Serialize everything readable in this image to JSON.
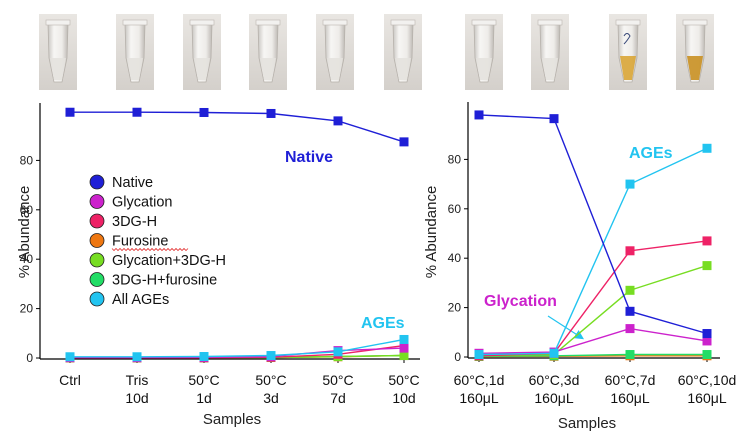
{
  "colors": {
    "Native": "#1f1fd6",
    "Glycation": "#cc22cc",
    "3DG-H": "#ee2266",
    "Furosine": "#ee7711",
    "Glycation+3DG-H": "#77dd22",
    "3DG-H+furosine": "#22dd66",
    "All AGEs": "#22c4f0"
  },
  "chart_data": [
    {
      "type": "line",
      "xlabel": "Samples",
      "ylabel": "% Abundance",
      "categories": [
        [
          "Ctrl"
        ],
        [
          "Tris",
          "10d"
        ],
        [
          "50°C",
          "1d"
        ],
        [
          "50°C",
          "3d"
        ],
        [
          "50°C",
          "7d"
        ],
        [
          "50°C",
          "10d"
        ]
      ],
      "ylim": [
        0,
        100
      ],
      "yticks": [
        0,
        20,
        40,
        60,
        80
      ],
      "series": [
        {
          "name": "Native",
          "values": [
            99.5,
            99.5,
            99.4,
            99,
            96,
            87.5
          ]
        },
        {
          "name": "Glycation",
          "values": [
            0.2,
            0.2,
            0.3,
            0.6,
            3,
            4
          ]
        },
        {
          "name": "3DG-H",
          "values": [
            0.1,
            0.1,
            0.1,
            0.3,
            1.5,
            5
          ]
        },
        {
          "name": "Furosine",
          "values": [
            0.1,
            0.1,
            0.1,
            0.2,
            0.5,
            1
          ]
        },
        {
          "name": "Glycation+3DG-H",
          "values": [
            0.1,
            0.1,
            0.1,
            0.2,
            0.6,
            1
          ]
        },
        {
          "name": "3DG-H+furosine",
          "values": [
            0.1,
            0.1,
            0.1,
            0.2,
            0.6,
            1
          ]
        },
        {
          "name": "All AGEs",
          "values": [
            0.5,
            0.5,
            0.6,
            1,
            2.5,
            7.5
          ]
        }
      ],
      "legend": [
        "Native",
        "Glycation",
        "3DG-H",
        "Furosine",
        "Glycation+3DG-H",
        "3DG-H+furosine",
        "All AGEs"
      ],
      "annotations": [
        "Native",
        "AGEs"
      ]
    },
    {
      "type": "line",
      "xlabel": "Samples",
      "ylabel": "% Abundance",
      "categories": [
        [
          "60°C,1d",
          "160μL"
        ],
        [
          "60°C,3d",
          "160μL"
        ],
        [
          "60°C,7d",
          "160μL"
        ],
        [
          "60°C,10d",
          "160μL"
        ]
      ],
      "ylim": [
        0,
        100
      ],
      "yticks": [
        0,
        20,
        40,
        60,
        80
      ],
      "series": [
        {
          "name": "Native",
          "values": [
            98,
            96.5,
            18.5,
            9.5
          ]
        },
        {
          "name": "Glycation",
          "values": [
            1.5,
            2,
            11.5,
            6.5
          ]
        },
        {
          "name": "3DG-H",
          "values": [
            0.5,
            1.5,
            43,
            47
          ]
        },
        {
          "name": "Furosine",
          "values": [
            0.2,
            0.3,
            0.5,
            0.5
          ]
        },
        {
          "name": "Glycation+3DG-H",
          "values": [
            0.5,
            1,
            27,
            37
          ]
        },
        {
          "name": "3DG-H+furosine",
          "values": [
            0.3,
            0.5,
            1,
            1
          ]
        },
        {
          "name": "All AGEs",
          "values": [
            1,
            1.5,
            70,
            84.5
          ]
        }
      ],
      "annotations": [
        "AGEs",
        "Glycation"
      ]
    }
  ]
}
